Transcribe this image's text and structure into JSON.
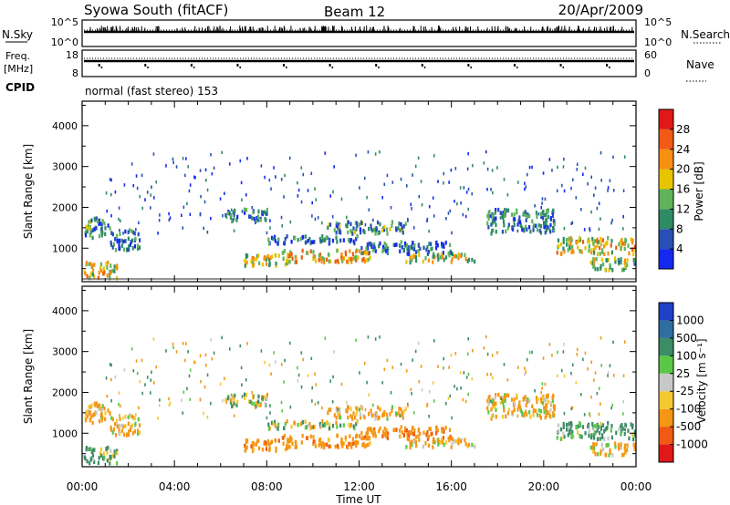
{
  "header": {
    "station": "Syowa South (fitACF)",
    "beam": "Beam 12",
    "date": "20/Apr/2009"
  },
  "strips": {
    "nsky_label": "N.Sky",
    "nsky_ticks": [
      "10^5",
      "10^0"
    ],
    "nsearch_label": "N.Search",
    "nsearch_ticks": [
      "10^5",
      "10^0"
    ],
    "freq_label_1": "Freq.",
    "freq_label_2": "[MHz]",
    "freq_ticks": [
      "18",
      "8"
    ],
    "nave_label": "Nave",
    "nave_ticks": [
      "60",
      "0"
    ],
    "cpid_label": "CPID",
    "cpid_text": "normal (fast stereo) 153"
  },
  "axes": {
    "xlabel": "Time UT",
    "ylabel": "Slant Range [km]",
    "x_ticks": [
      "00:00",
      "04:00",
      "08:00",
      "12:00",
      "16:00",
      "20:00",
      "00:00"
    ],
    "y_ticks": [
      "1000",
      "2000",
      "3000",
      "4000"
    ]
  },
  "power_bar": {
    "label": "Power [dB]",
    "ticks": [
      "4",
      "8",
      "12",
      "16",
      "20",
      "24",
      "28"
    ],
    "colors": [
      "#1428f0",
      "#2850b4",
      "#2e8c64",
      "#5fb45a",
      "#e8c400",
      "#f59010",
      "#f05a14",
      "#e01818"
    ]
  },
  "velocity_bar": {
    "label": "Velocity [m s⁻¹]",
    "ticks": [
      "1000",
      "500",
      "100",
      "25",
      "-25",
      "-100",
      "-500",
      "-1000"
    ],
    "colors": [
      "#2040c8",
      "#2e6ea0",
      "#3c8c64",
      "#5ac846",
      "#c8c8c8",
      "#f5c832",
      "#f59614",
      "#f05a14",
      "#e01818"
    ]
  },
  "chart_data": [
    {
      "type": "heatmap",
      "title": "Power",
      "xlabel": "Time UT",
      "ylabel": "Slant Range [km]",
      "xlim_hours": [
        0,
        24
      ],
      "ylim_km": [
        180,
        4600
      ],
      "colorbar": {
        "label": "Power [dB]",
        "range": [
          0,
          32
        ]
      },
      "echo_regions": [
        {
          "t": [
            0.0,
            1.2
          ],
          "r": [
            1300,
            1800
          ],
          "value": 10
        },
        {
          "t": [
            0.0,
            1.5
          ],
          "r": [
            300,
            700
          ],
          "value": 18
        },
        {
          "t": [
            1.2,
            2.5
          ],
          "r": [
            1000,
            1500
          ],
          "value": 8
        },
        {
          "t": [
            6.0,
            8.0
          ],
          "r": [
            1700,
            2000
          ],
          "value": 6
        },
        {
          "t": [
            7.0,
            9.0
          ],
          "r": [
            600,
            900
          ],
          "value": 18
        },
        {
          "t": [
            8.0,
            12.0
          ],
          "r": [
            1150,
            1350
          ],
          "value": 6
        },
        {
          "t": [
            8.5,
            12.5
          ],
          "r": [
            700,
            1000
          ],
          "value": 20
        },
        {
          "t": [
            10.5,
            14.0
          ],
          "r": [
            1400,
            1700
          ],
          "value": 10
        },
        {
          "t": [
            12.0,
            16.0
          ],
          "r": [
            900,
            1200
          ],
          "value": 8
        },
        {
          "t": [
            14.0,
            17.0
          ],
          "r": [
            700,
            900
          ],
          "value": 16
        },
        {
          "t": [
            17.5,
            20.5
          ],
          "r": [
            1400,
            2000
          ],
          "value": 8
        },
        {
          "t": [
            20.5,
            24.0
          ],
          "r": [
            900,
            1300
          ],
          "value": 18
        },
        {
          "t": [
            22.0,
            24.0
          ],
          "r": [
            500,
            800
          ],
          "value": 14
        }
      ]
    },
    {
      "type": "heatmap",
      "title": "Velocity",
      "xlabel": "Time UT",
      "ylabel": "Slant Range [km]",
      "xlim_hours": [
        0,
        24
      ],
      "ylim_km": [
        180,
        4600
      ],
      "colorbar": {
        "label": "Velocity [m s-1]",
        "range": [
          -1000,
          1000
        ]
      },
      "echo_regions": [
        {
          "t": [
            0.0,
            1.2
          ],
          "r": [
            1300,
            1800
          ],
          "value": -200
        },
        {
          "t": [
            0.0,
            1.5
          ],
          "r": [
            300,
            700
          ],
          "value": 150
        },
        {
          "t": [
            1.2,
            2.5
          ],
          "r": [
            1000,
            1500
          ],
          "value": -150
        },
        {
          "t": [
            6.0,
            8.0
          ],
          "r": [
            1700,
            2000
          ],
          "value": 0
        },
        {
          "t": [
            7.0,
            9.0
          ],
          "r": [
            600,
            900
          ],
          "value": -300
        },
        {
          "t": [
            8.0,
            12.0
          ],
          "r": [
            1150,
            1350
          ],
          "value": 0
        },
        {
          "t": [
            8.5,
            12.5
          ],
          "r": [
            700,
            1000
          ],
          "value": -300
        },
        {
          "t": [
            10.5,
            14.0
          ],
          "r": [
            1400,
            1700
          ],
          "value": -200
        },
        {
          "t": [
            12.0,
            16.0
          ],
          "r": [
            900,
            1200
          ],
          "value": -400
        },
        {
          "t": [
            14.0,
            17.0
          ],
          "r": [
            700,
            900
          ],
          "value": -150
        },
        {
          "t": [
            17.5,
            20.5
          ],
          "r": [
            1400,
            2000
          ],
          "value": -150
        },
        {
          "t": [
            20.5,
            24.0
          ],
          "r": [
            900,
            1300
          ],
          "value": 200
        },
        {
          "t": [
            22.0,
            24.0
          ],
          "r": [
            500,
            800
          ],
          "value": -150
        }
      ]
    }
  ]
}
